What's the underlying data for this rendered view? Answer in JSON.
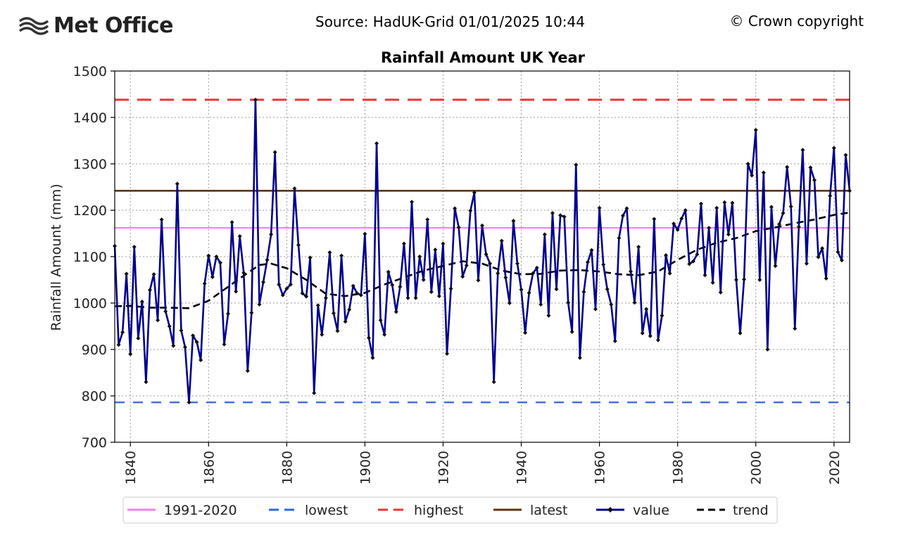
{
  "header": {
    "logo_text": "Met Office",
    "source": "Source: HadUK-Grid 01/01/2025 10:44",
    "copyright": "© Crown copyright"
  },
  "chart_data": {
    "type": "line",
    "title": "Rainfall Amount UK Year",
    "xlabel": "",
    "ylabel": "Rainfall Amount (mm)",
    "xlim": [
      1836,
      2024
    ],
    "ylim": [
      700,
      1500
    ],
    "xticks": [
      1840,
      1860,
      1880,
      1900,
      1920,
      1940,
      1960,
      1980,
      2000,
      2020
    ],
    "yticks": [
      700,
      800,
      900,
      1000,
      1100,
      1200,
      1300,
      1400,
      1500
    ],
    "grid": true,
    "legend_position": "bottom",
    "colors": {
      "avg": "#ee82ee",
      "lowest": "#3366dd",
      "highest": "#ee3333",
      "latest": "#5c3311",
      "value": "#00008b",
      "trend": "#000000"
    },
    "reference_lines": {
      "1991-2020": 1162,
      "lowest": 786,
      "highest": 1438,
      "latest": 1242
    },
    "series": [
      {
        "name": "value",
        "start_year": 1836,
        "values": [
          1123,
          910,
          937,
          1063,
          890,
          1121,
          924,
          1003,
          830,
          1028,
          1062,
          963,
          1180,
          982,
          950,
          908,
          1257,
          941,
          905,
          786,
          930,
          916,
          877,
          1042,
          1102,
          1056,
          1100,
          1087,
          911,
          977,
          1174,
          1025,
          1144,
          1065,
          854,
          979,
          1438,
          997,
          1045,
          1093,
          1148,
          1325,
          1040,
          1017,
          1031,
          1040,
          1247,
          1125,
          1021,
          1014,
          1098,
          806,
          995,
          932,
          1011,
          1109,
          978,
          940,
          1102,
          960,
          986,
          1037,
          1021,
          1017,
          1149,
          925,
          882,
          1344,
          963,
          932,
          1067,
          1039,
          981,
          1035,
          1128,
          1011,
          1218,
          1011,
          1100,
          1050,
          1180,
          1024,
          1115,
          1015,
          1128,
          891,
          1031,
          1204,
          1163,
          1057,
          1081,
          1199,
          1238,
          1049,
          1167,
          1105,
          1085,
          830,
          1064,
          1134,
          1055,
          1000,
          1177,
          1085,
          1029,
          936,
          1022,
          1064,
          1076,
          997,
          1148,
          973,
          1194,
          1030,
          1189,
          1186,
          1001,
          938,
          1298,
          882,
          1024,
          1088,
          1114,
          987,
          1205,
          1083,
          1030,
          997,
          918,
          1140,
          1188,
          1204,
          1068,
          1001,
          1121,
          935,
          987,
          929,
          1181,
          920,
          973,
          1103,
          1064,
          1171,
          1158,
          1182,
          1200,
          1084,
          1090,
          1105,
          1214,
          1060,
          1162,
          1044,
          1205,
          1023,
          1217,
          1148,
          1216,
          1050,
          935,
          1051,
          1300,
          1275,
          1373,
          1050,
          1281,
          900,
          1207,
          1080,
          1170,
          1194,
          1293,
          1208,
          945,
          1164,
          1330,
          1085,
          1292,
          1265,
          1099,
          1118,
          1053,
          1231,
          1334,
          1110,
          1092,
          1319,
          1242
        ]
      },
      {
        "name": "trend",
        "points": [
          [
            1836,
            993
          ],
          [
            1840,
            994
          ],
          [
            1845,
            990
          ],
          [
            1850,
            990
          ],
          [
            1855,
            989
          ],
          [
            1860,
            1005
          ],
          [
            1865,
            1035
          ],
          [
            1870,
            1065
          ],
          [
            1873,
            1082
          ],
          [
            1876,
            1085
          ],
          [
            1880,
            1075
          ],
          [
            1885,
            1050
          ],
          [
            1890,
            1020
          ],
          [
            1895,
            1015
          ],
          [
            1900,
            1022
          ],
          [
            1905,
            1040
          ],
          [
            1910,
            1055
          ],
          [
            1915,
            1070
          ],
          [
            1920,
            1080
          ],
          [
            1925,
            1090
          ],
          [
            1930,
            1085
          ],
          [
            1935,
            1070
          ],
          [
            1940,
            1062
          ],
          [
            1945,
            1063
          ],
          [
            1950,
            1070
          ],
          [
            1955,
            1071
          ],
          [
            1960,
            1068
          ],
          [
            1965,
            1062
          ],
          [
            1970,
            1060
          ],
          [
            1975,
            1068
          ],
          [
            1980,
            1093
          ],
          [
            1985,
            1115
          ],
          [
            1990,
            1130
          ],
          [
            1995,
            1140
          ],
          [
            2000,
            1155
          ],
          [
            2005,
            1163
          ],
          [
            2010,
            1172
          ],
          [
            2015,
            1180
          ],
          [
            2020,
            1190
          ],
          [
            2024,
            1195
          ]
        ]
      }
    ],
    "legend": [
      "1991-2020",
      "lowest",
      "highest",
      "latest",
      "value",
      "trend"
    ]
  }
}
